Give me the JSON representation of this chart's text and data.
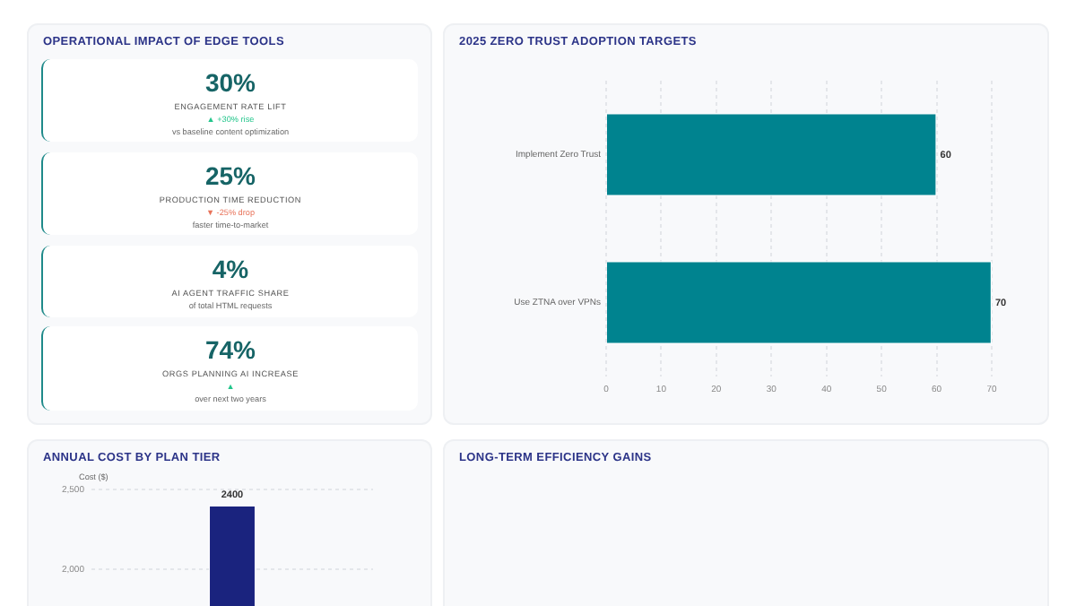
{
  "chart_data": [
    {
      "type": "other",
      "title": "OPERATIONAL IMPACT OF EDGE TOOLS",
      "annotations": [
        "30%",
        "ENGAGEMENT RATE LIFT",
        "▲ +30% rise",
        "vs baseline content optimization",
        "25%",
        "PRODUCTION TIME REDUCTION",
        "▼ -25% drop",
        "faster time-to-market",
        "4%",
        "AI AGENT TRAFFIC SHARE",
        "of total HTML requests",
        "74%",
        "ORGS PLANNING AI INCREASE",
        "▲",
        "over next two years"
      ]
    },
    {
      "type": "bar",
      "orientation": "horizontal",
      "title": "2025 ZERO TRUST ADOPTION TARGETS",
      "categories": [
        "Implement Zero Trust",
        "Use ZTNA over VPNs"
      ],
      "values": [
        60,
        70
      ],
      "color": "#00838f",
      "xlim": [
        0,
        70
      ],
      "xticks": [
        0,
        10,
        20,
        30,
        40,
        50,
        60,
        70
      ],
      "grid": "x",
      "data_labels": true
    },
    {
      "type": "bar",
      "title": "ANNUAL COST BY PLAN TIER",
      "ylabel": "Cost ($)",
      "categories": [
        null,
        null,
        null
      ],
      "values": [
        null,
        2400,
        null
      ],
      "color": "#1a237e",
      "ylim": [
        0,
        2500
      ],
      "yticks": [
        {
          "value": 2000,
          "label": "2,000"
        },
        {
          "value": 2500,
          "label": "2,500"
        }
      ],
      "grid": "y",
      "data_labels": true
    },
    {
      "type": "other",
      "title": "LONG-TERM EFFICIENCY GAINS"
    }
  ]
}
